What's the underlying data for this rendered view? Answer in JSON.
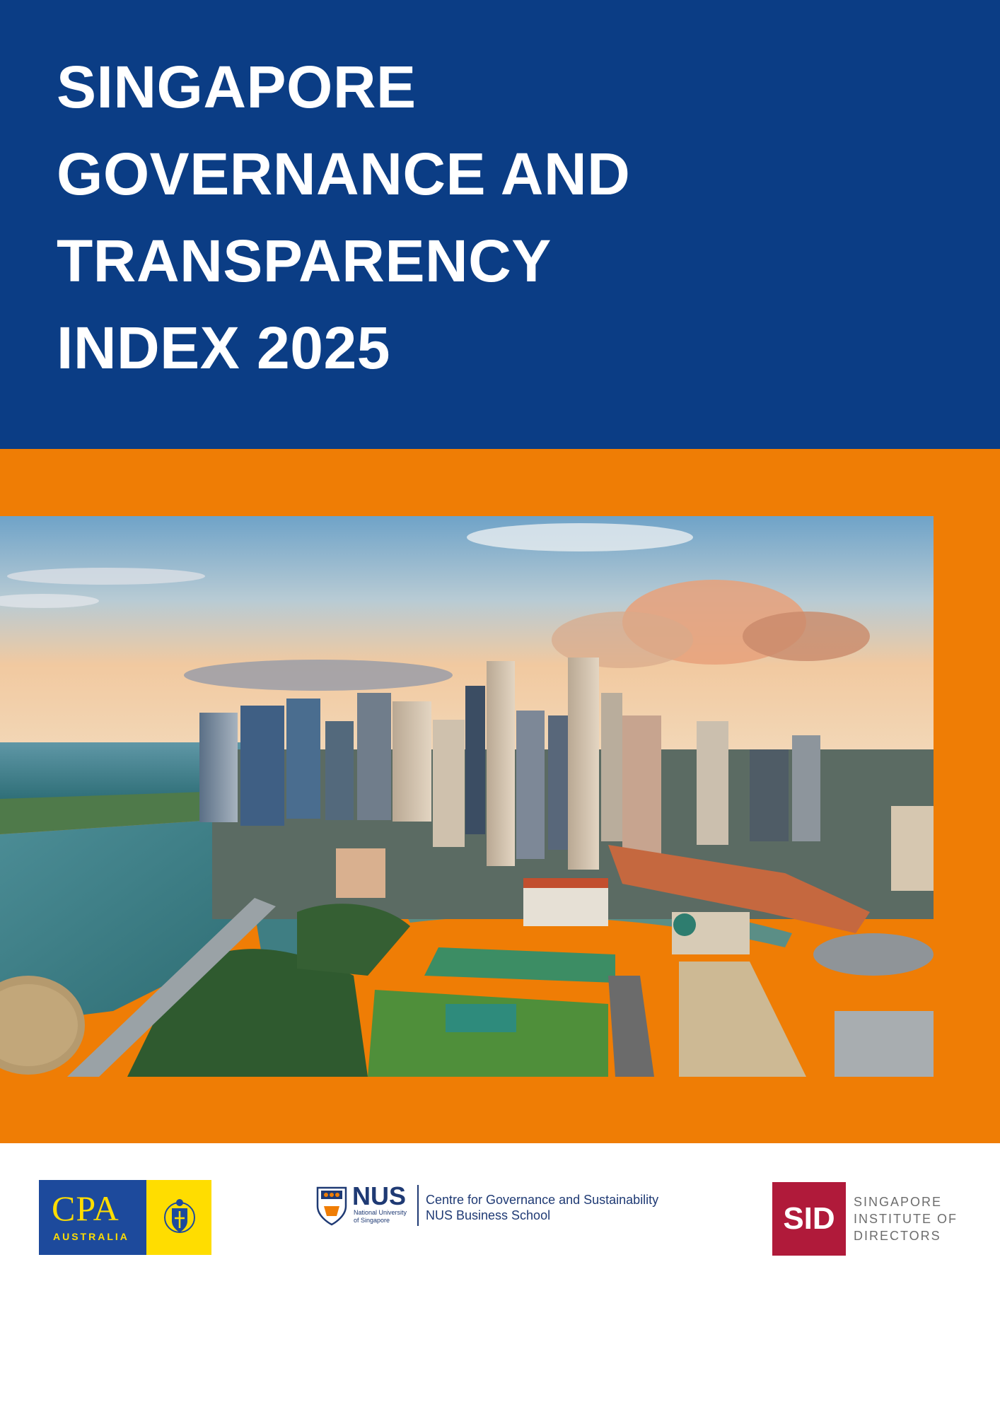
{
  "cover": {
    "title_lines": [
      "SINGAPORE",
      "GOVERNANCE AND",
      "TRANSPARENCY",
      "INDEX 2025"
    ]
  },
  "colors": {
    "title_band": "#0b3d85",
    "orange_band": "#ef7d05",
    "cpa_blue": "#1d4a9c",
    "cpa_yellow": "#ffdd00",
    "nus_blue": "#1f3a74",
    "sid_red": "#b01a3a"
  },
  "photo": {
    "icon": "singapore-skyline-photo"
  },
  "logos": {
    "cpa": {
      "word": "CPA",
      "sub": "AUSTRALIA"
    },
    "nus": {
      "word": "NUS",
      "small": "National University of Singapore",
      "centre": "Centre for Governance and Sustainability",
      "school": "NUS Business School"
    },
    "sid": {
      "word": "SID",
      "lines": [
        "SINGAPORE",
        "INSTITUTE OF",
        "DIRECTORS"
      ]
    }
  }
}
